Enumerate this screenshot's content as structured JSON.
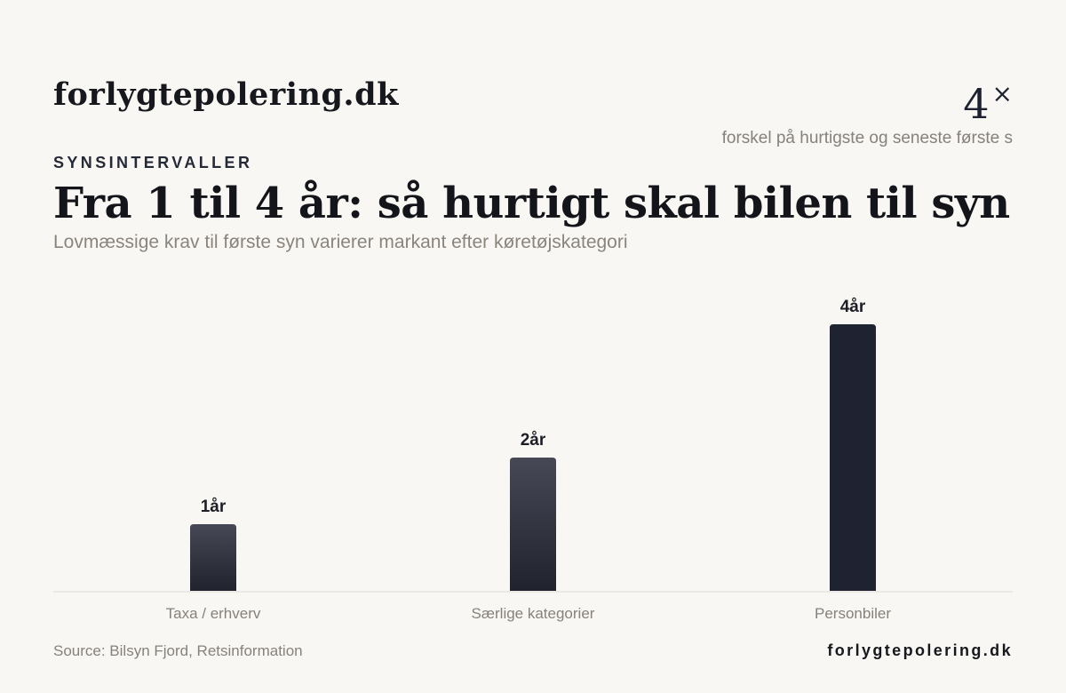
{
  "header": {
    "brand": "forlygtepolering.dk",
    "stat_value": "4",
    "stat_symbol": "×",
    "stat_label": "forskel på hurtigste og seneste første s"
  },
  "eyebrow": "SYNSINTERVALLER",
  "title": "Fra 1 til 4 år: så hurtigt skal bilen til syn",
  "subtitle": "Lovmæssige krav til første syn varierer markant efter køretøjskategori",
  "chart_data": {
    "type": "bar",
    "categories": [
      "Taxa / erhverv",
      "Særlige kategorier",
      "Personbiler"
    ],
    "values": [
      1,
      2,
      4
    ],
    "value_labels": [
      "1år",
      "2år",
      "4år"
    ],
    "ylim": [
      0,
      4
    ],
    "grid": false,
    "legend": "none",
    "colors": {
      "bar_top": "#464955",
      "bar_bottom": "#20232e",
      "bar_accent": "#1f2230",
      "baseline": "#dedad4",
      "label": "#86817b",
      "value": "#1c1e26"
    }
  },
  "footer": {
    "source": "Source: Bilsyn Fjord, Retsinformation",
    "brand": "forlygtepolering.dk"
  }
}
